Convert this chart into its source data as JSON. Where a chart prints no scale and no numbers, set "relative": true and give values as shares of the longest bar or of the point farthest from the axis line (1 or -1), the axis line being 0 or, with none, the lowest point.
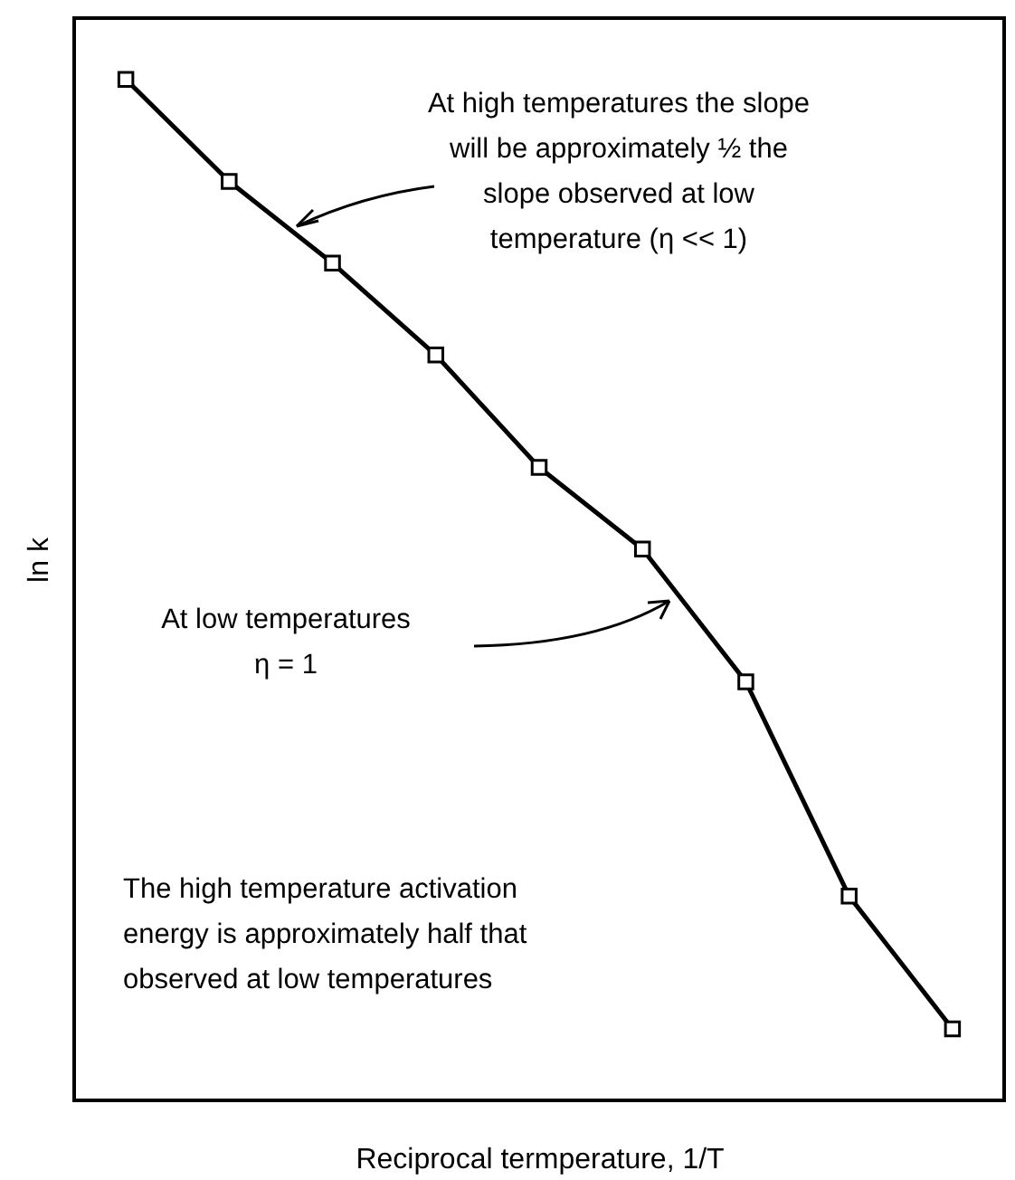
{
  "chart_data": {
    "type": "line",
    "relative": true,
    "xlabel": "Reciprocal termperature, 1/T",
    "ylabel": "ln k",
    "categories": [
      null,
      null,
      null,
      null,
      null,
      null,
      null,
      null,
      null
    ],
    "series": [
      {
        "color": "#000000",
        "values": [
          1,
          0.9,
          0.82,
          0.73,
          0.62,
          0.54,
          0.41,
          0.2,
          0.07
        ]
      }
    ],
    "marker": "square",
    "line_style": "solid",
    "annotations": [
      "At high temperatures the slope\nwill be approximately ½ the\nslope observed at low\ntemperature (η << 1)",
      "At low temperatures\nη = 1",
      "The high temperature activation\nenergy is approximately half that\nobserved at low temperatures"
    ]
  }
}
